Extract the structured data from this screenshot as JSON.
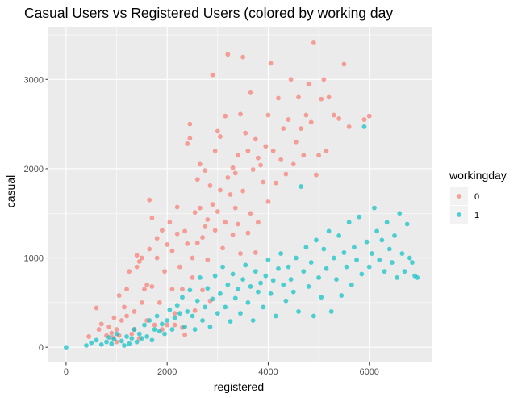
{
  "chart_data": {
    "type": "scatter",
    "title": "Casual Users vs Registered Users (colored by working day",
    "xlabel": "registered",
    "ylabel": "casual",
    "xlim": [
      -350,
      7250
    ],
    "ylim": [
      -170,
      3590
    ],
    "xticks": [
      0,
      2000,
      4000,
      6000
    ],
    "yticks": [
      0,
      1000,
      2000,
      3000
    ],
    "grid": true,
    "panel_background": "#EBEBEB",
    "grid_color": "#FFFFFF",
    "legend": {
      "title": "workingday",
      "position": "right",
      "entries": [
        {
          "label": "0",
          "color": "#F8766D"
        },
        {
          "label": "1",
          "color": "#00BFC4"
        }
      ]
    },
    "series": [
      {
        "name": "0",
        "color": "#F8766D",
        "points": [
          [
            450,
            120
          ],
          [
            600,
            440
          ],
          [
            650,
            200
          ],
          [
            700,
            260
          ],
          [
            800,
            130
          ],
          [
            850,
            230
          ],
          [
            900,
            160
          ],
          [
            920,
            110
          ],
          [
            950,
            330
          ],
          [
            1000,
            60
          ],
          [
            1000,
            200
          ],
          [
            1050,
            130
          ],
          [
            1050,
            580
          ],
          [
            1100,
            300
          ],
          [
            1150,
            450
          ],
          [
            1200,
            350
          ],
          [
            1200,
            650
          ],
          [
            1250,
            850
          ],
          [
            1300,
            150
          ],
          [
            1350,
            400
          ],
          [
            1350,
            200
          ],
          [
            1400,
            1030
          ],
          [
            1400,
            900
          ],
          [
            1450,
            100
          ],
          [
            1450,
            960
          ],
          [
            1500,
            1000
          ],
          [
            1500,
            500
          ],
          [
            1550,
            650
          ],
          [
            1600,
            300
          ],
          [
            1600,
            700
          ],
          [
            1650,
            1650
          ],
          [
            1650,
            1100
          ],
          [
            1700,
            1450
          ],
          [
            1700,
            680
          ],
          [
            1750,
            250
          ],
          [
            1800,
            1220
          ],
          [
            1800,
            1000
          ],
          [
            1850,
            500
          ],
          [
            1900,
            1310
          ],
          [
            1900,
            200
          ],
          [
            1950,
            850
          ],
          [
            2000,
            1150
          ],
          [
            2000,
            250
          ],
          [
            2050,
            1400
          ],
          [
            2100,
            1080
          ],
          [
            2100,
            650
          ],
          [
            2150,
            380
          ],
          [
            2150,
            250
          ],
          [
            2200,
            1570
          ],
          [
            2200,
            1270
          ],
          [
            2250,
            900
          ],
          [
            2300,
            650
          ],
          [
            2300,
            220
          ],
          [
            2350,
            1300
          ],
          [
            2350,
            140
          ],
          [
            2400,
            2280
          ],
          [
            2400,
            1160
          ],
          [
            2450,
            2500
          ],
          [
            2450,
            2340
          ],
          [
            2500,
            1000
          ],
          [
            2500,
            780
          ],
          [
            2550,
            1510
          ],
          [
            2550,
            410
          ],
          [
            2600,
            1880
          ],
          [
            2600,
            1170
          ],
          [
            2650,
            2050
          ],
          [
            2650,
            1560
          ],
          [
            2700,
            1230
          ],
          [
            2700,
            640
          ],
          [
            2750,
            1980
          ],
          [
            2750,
            1350
          ],
          [
            2800,
            1430
          ],
          [
            2800,
            980
          ],
          [
            2850,
            1810
          ],
          [
            2850,
            520
          ],
          [
            2900,
            3050
          ],
          [
            2900,
            1600
          ],
          [
            2950,
            2200
          ],
          [
            2950,
            1310
          ],
          [
            3000,
            2420
          ],
          [
            3000,
            1520
          ],
          [
            3050,
            1760
          ],
          [
            3050,
            2360
          ],
          [
            3100,
            1110
          ],
          [
            3150,
            2590
          ],
          [
            3150,
            1400
          ],
          [
            3200,
            3280
          ],
          [
            3200,
            1900
          ],
          [
            3250,
            1710
          ],
          [
            3300,
            2010
          ],
          [
            3300,
            1260
          ],
          [
            3350,
            1950
          ],
          [
            3350,
            1560
          ],
          [
            3400,
            2150
          ],
          [
            3400,
            1380
          ],
          [
            3450,
            2610
          ],
          [
            3450,
            1050
          ],
          [
            3500,
            3250
          ],
          [
            3500,
            1750
          ],
          [
            3550,
            2400
          ],
          [
            3600,
            2200
          ],
          [
            3600,
            1280
          ],
          [
            3650,
            2850
          ],
          [
            3650,
            1500
          ],
          [
            3700,
            1990
          ],
          [
            3750,
            2330
          ],
          [
            3750,
            1060
          ],
          [
            3800,
            2120
          ],
          [
            3800,
            1400
          ],
          [
            3850,
            2040
          ],
          [
            3900,
            1850
          ],
          [
            3950,
            2250
          ],
          [
            4000,
            2600
          ],
          [
            4000,
            1630
          ],
          [
            4050,
            3180
          ],
          [
            4100,
            2200
          ],
          [
            4150,
            1840
          ],
          [
            4200,
            2790
          ],
          [
            4250,
            2100
          ],
          [
            4300,
            2450
          ],
          [
            4350,
            1940
          ],
          [
            4400,
            2550
          ],
          [
            4450,
            3000
          ],
          [
            4500,
            2050
          ],
          [
            4550,
            2300
          ],
          [
            4600,
            2800
          ],
          [
            4650,
            2450
          ],
          [
            4700,
            2150
          ],
          [
            4750,
            2600
          ],
          [
            4800,
            2950
          ],
          [
            4850,
            2520
          ],
          [
            4900,
            3410
          ],
          [
            4950,
            1930
          ],
          [
            5000,
            2150
          ],
          [
            5050,
            2780
          ],
          [
            5100,
            3000
          ],
          [
            5150,
            2200
          ],
          [
            5200,
            2800
          ],
          [
            5300,
            2600
          ],
          [
            5400,
            2560
          ],
          [
            5500,
            3170
          ],
          [
            5600,
            2470
          ],
          [
            5900,
            2550
          ],
          [
            6000,
            2590
          ]
        ]
      },
      {
        "name": "1",
        "color": "#00BFC4",
        "points": [
          [
            0,
            0
          ],
          [
            400,
            20
          ],
          [
            500,
            50
          ],
          [
            600,
            80
          ],
          [
            700,
            30
          ],
          [
            800,
            60
          ],
          [
            850,
            110
          ],
          [
            900,
            40
          ],
          [
            950,
            90
          ],
          [
            1000,
            150
          ],
          [
            1100,
            70
          ],
          [
            1150,
            20
          ],
          [
            1200,
            120
          ],
          [
            1250,
            40
          ],
          [
            1300,
            100
          ],
          [
            1350,
            200
          ],
          [
            1400,
            60
          ],
          [
            1450,
            150
          ],
          [
            1500,
            100
          ],
          [
            1550,
            250
          ],
          [
            1600,
            120
          ],
          [
            1650,
            300
          ],
          [
            1700,
            80
          ],
          [
            1750,
            200
          ],
          [
            1800,
            350
          ],
          [
            1850,
            180
          ],
          [
            1900,
            260
          ],
          [
            1950,
            150
          ],
          [
            2000,
            300
          ],
          [
            2050,
            420
          ],
          [
            2100,
            200
          ],
          [
            2150,
            330
          ],
          [
            2200,
            470
          ],
          [
            2250,
            380
          ],
          [
            2300,
            560
          ],
          [
            2350,
            230
          ],
          [
            2400,
            400
          ],
          [
            2450,
            640
          ],
          [
            2500,
            350
          ],
          [
            2550,
            200
          ],
          [
            2600,
            520
          ],
          [
            2650,
            780
          ],
          [
            2700,
            300
          ],
          [
            2750,
            450
          ],
          [
            2800,
            660
          ],
          [
            2850,
            230
          ],
          [
            2900,
            540
          ],
          [
            2950,
            800
          ],
          [
            3000,
            380
          ],
          [
            3050,
            600
          ],
          [
            3100,
            900
          ],
          [
            3150,
            450
          ],
          [
            3200,
            700
          ],
          [
            3250,
            290
          ],
          [
            3300,
            820
          ],
          [
            3350,
            550
          ],
          [
            3400,
            650
          ],
          [
            3450,
            380
          ],
          [
            3500,
            760
          ],
          [
            3550,
            920
          ],
          [
            3600,
            500
          ],
          [
            3650,
            680
          ],
          [
            3700,
            300
          ],
          [
            3750,
            850
          ],
          [
            3800,
            620
          ],
          [
            3850,
            720
          ],
          [
            3900,
            450
          ],
          [
            3950,
            800
          ],
          [
            4000,
            980
          ],
          [
            4050,
            600
          ],
          [
            4100,
            750
          ],
          [
            4150,
            350
          ],
          [
            4200,
            880
          ],
          [
            4250,
            1050
          ],
          [
            4300,
            700
          ],
          [
            4350,
            520
          ],
          [
            4400,
            900
          ],
          [
            4450,
            760
          ],
          [
            4500,
            620
          ],
          [
            4550,
            1000
          ],
          [
            4600,
            400
          ],
          [
            4650,
            1800
          ],
          [
            4700,
            850
          ],
          [
            4750,
            1120
          ],
          [
            4800,
            680
          ],
          [
            4850,
            950
          ],
          [
            4900,
            350
          ],
          [
            4950,
            1200
          ],
          [
            5000,
            780
          ],
          [
            5050,
            560
          ],
          [
            5100,
            1100
          ],
          [
            5150,
            880
          ],
          [
            5200,
            1300
          ],
          [
            5250,
            400
          ],
          [
            5300,
            1000
          ],
          [
            5350,
            760
          ],
          [
            5400,
            1250
          ],
          [
            5450,
            580
          ],
          [
            5500,
            1060
          ],
          [
            5550,
            900
          ],
          [
            5600,
            1400
          ],
          [
            5650,
            700
          ],
          [
            5700,
            1120
          ],
          [
            5750,
            980
          ],
          [
            5800,
            1460
          ],
          [
            5850,
            820
          ],
          [
            5900,
            2470
          ],
          [
            5950,
            1180
          ],
          [
            6000,
            900
          ],
          [
            6050,
            1050
          ],
          [
            6100,
            1560
          ],
          [
            6150,
            1300
          ],
          [
            6200,
            980
          ],
          [
            6250,
            1200
          ],
          [
            6300,
            850
          ],
          [
            6350,
            1400
          ],
          [
            6400,
            1100
          ],
          [
            6450,
            950
          ],
          [
            6500,
            1250
          ],
          [
            6550,
            780
          ],
          [
            6600,
            1500
          ],
          [
            6650,
            1050
          ],
          [
            6700,
            850
          ],
          [
            6750,
            1380
          ],
          [
            6800,
            1000
          ],
          [
            6850,
            950
          ],
          [
            6900,
            800
          ],
          [
            6950,
            780
          ]
        ]
      }
    ]
  }
}
